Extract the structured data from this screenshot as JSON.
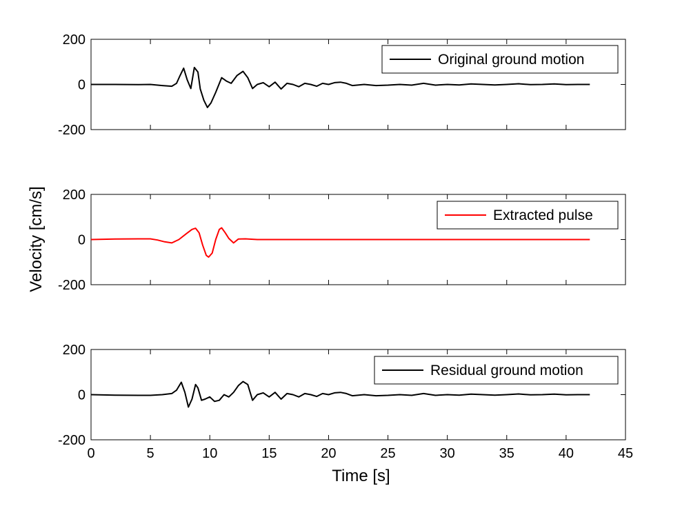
{
  "chart_data": [
    {
      "type": "line",
      "xlim": [
        0,
        45
      ],
      "ylim": [
        -200,
        200
      ],
      "yticks": [
        -200,
        0,
        200
      ],
      "xticks": [
        0,
        5,
        10,
        15,
        20,
        25,
        30,
        35,
        40,
        45
      ],
      "show_xtick_labels": false,
      "grid": false,
      "legend_position": "top-right",
      "series": [
        {
          "name": "Original ground motion",
          "color": "#000000",
          "x": [
            0,
            2,
            4,
            5,
            6,
            6.8,
            7.2,
            7.5,
            7.8,
            8.1,
            8.4,
            8.7,
            9.0,
            9.2,
            9.5,
            9.8,
            10.1,
            10.5,
            11.0,
            11.4,
            11.8,
            12.3,
            12.8,
            13.2,
            13.6,
            14.0,
            14.5,
            15.0,
            15.5,
            16.0,
            16.5,
            17.0,
            17.5,
            18.0,
            18.5,
            19.0,
            19.5,
            20.0,
            20.5,
            21.0,
            21.5,
            22.0,
            23.0,
            24.0,
            25.0,
            26.0,
            27.0,
            28.0,
            29.0,
            30.0,
            31.0,
            32.0,
            33.0,
            34.0,
            35.0,
            36.0,
            37.0,
            38.0,
            39.0,
            40.0,
            41.0,
            42.0
          ],
          "values": [
            0,
            0,
            -1,
            0,
            -5,
            -8,
            5,
            40,
            72,
            20,
            -18,
            75,
            55,
            -20,
            -70,
            -102,
            -82,
            -35,
            30,
            15,
            5,
            40,
            58,
            30,
            -18,
            0,
            8,
            -10,
            10,
            -20,
            5,
            0,
            -10,
            5,
            0,
            -8,
            5,
            0,
            8,
            10,
            5,
            -5,
            0,
            -5,
            -3,
            0,
            -3,
            5,
            -3,
            0,
            -2,
            2,
            0,
            -2,
            0,
            3,
            -1,
            0,
            2,
            -1,
            0,
            0
          ]
        }
      ]
    },
    {
      "type": "line",
      "xlim": [
        0,
        45
      ],
      "ylim": [
        -200,
        200
      ],
      "yticks": [
        -200,
        0,
        200
      ],
      "xticks": [
        0,
        5,
        10,
        15,
        20,
        25,
        30,
        35,
        40,
        45
      ],
      "show_xtick_labels": false,
      "grid": false,
      "legend_position": "top-right",
      "series": [
        {
          "name": "Extracted pulse",
          "color": "#ff0000",
          "x": [
            0,
            2,
            4,
            5,
            5.6,
            6.2,
            6.8,
            7.4,
            8.0,
            8.5,
            8.8,
            9.1,
            9.4,
            9.7,
            9.9,
            10.2,
            10.5,
            10.8,
            11.0,
            11.3,
            11.6,
            12.0,
            12.4,
            13.0,
            14.0,
            17.0,
            20.0,
            30.0,
            42.0
          ],
          "values": [
            0,
            2,
            3,
            3,
            -2,
            -10,
            -15,
            0,
            25,
            45,
            50,
            30,
            -25,
            -70,
            -78,
            -60,
            0,
            45,
            52,
            30,
            5,
            -15,
            2,
            3,
            0,
            0,
            0,
            0,
            0
          ]
        }
      ]
    },
    {
      "type": "line",
      "xlim": [
        0,
        45
      ],
      "ylim": [
        -200,
        200
      ],
      "yticks": [
        -200,
        0,
        200
      ],
      "xticks": [
        0,
        5,
        10,
        15,
        20,
        25,
        30,
        35,
        40,
        45
      ],
      "show_xtick_labels": true,
      "xlabel": "Time [s]",
      "grid": false,
      "legend_position": "top-right",
      "series": [
        {
          "name": "Residual ground motion",
          "color": "#000000",
          "x": [
            0,
            2,
            4,
            5,
            6,
            6.8,
            7.2,
            7.6,
            7.9,
            8.2,
            8.5,
            8.8,
            9.0,
            9.3,
            9.6,
            10.0,
            10.4,
            10.8,
            11.2,
            11.6,
            12.0,
            12.4,
            12.8,
            13.2,
            13.6,
            14.0,
            14.5,
            15.0,
            15.5,
            16.0,
            16.5,
            17.0,
            17.5,
            18.0,
            18.5,
            19.0,
            19.5,
            20.0,
            20.5,
            21.0,
            21.5,
            22.0,
            23.0,
            24.0,
            25.0,
            26.0,
            27.0,
            28.0,
            29.0,
            30.0,
            31.0,
            32.0,
            33.0,
            34.0,
            35.0,
            36.0,
            37.0,
            38.0,
            39.0,
            40.0,
            41.0,
            42.0
          ],
          "values": [
            0,
            -2,
            -3,
            -3,
            0,
            5,
            20,
            55,
            10,
            -55,
            -20,
            45,
            30,
            -25,
            -20,
            -10,
            -30,
            -25,
            0,
            -10,
            10,
            40,
            58,
            45,
            -25,
            0,
            8,
            -10,
            10,
            -20,
            5,
            0,
            -10,
            5,
            0,
            -8,
            5,
            0,
            8,
            10,
            5,
            -5,
            0,
            -5,
            -3,
            0,
            -3,
            5,
            -3,
            0,
            -2,
            2,
            0,
            -2,
            0,
            3,
            -1,
            0,
            2,
            -1,
            0,
            0
          ]
        }
      ]
    }
  ],
  "shared_ylabel": "Velocity [cm/s]"
}
